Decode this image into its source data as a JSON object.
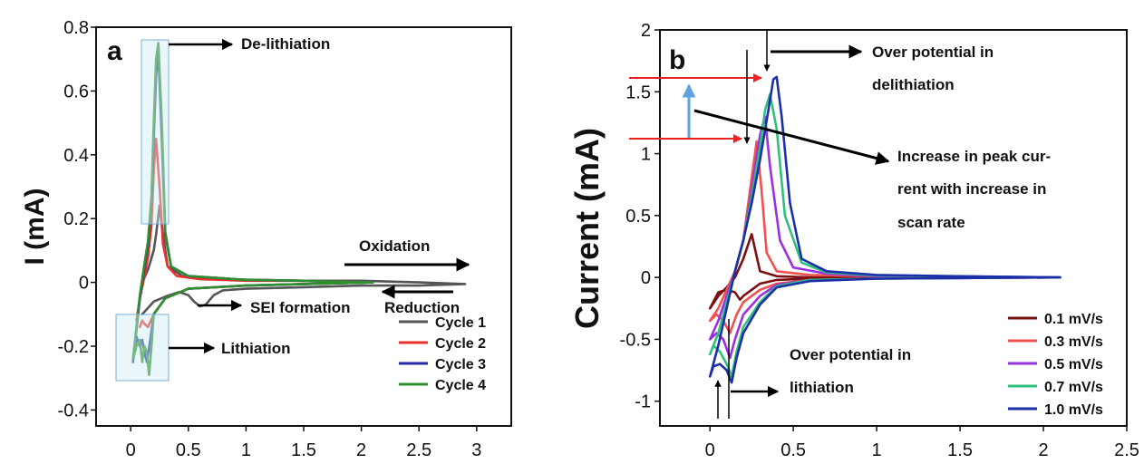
{
  "chart_data": [
    {
      "panel": "a",
      "type": "line",
      "ylabel": "I (mA)",
      "xlabel": "",
      "xlim": [
        -0.3,
        3.3
      ],
      "ylim": [
        -0.45,
        0.8
      ],
      "xticks": [
        0,
        0.5,
        1,
        1.5,
        2,
        2.5,
        3
      ],
      "xtick_labels": [
        "0",
        "0.5",
        "1",
        "1.5",
        "2",
        "2.5",
        "3"
      ],
      "yticks": [
        -0.4,
        -0.2,
        0,
        0.2,
        0.4,
        0.6,
        0.8
      ],
      "ytick_labels": [
        "-0.4",
        "-0.2",
        "0",
        "0.2",
        "0.4",
        "0.6",
        "0.8"
      ],
      "legend_placement": "bottom-right",
      "annotations": {
        "delithiation": "De-lithiation",
        "oxidation": "Oxidation",
        "reduction": "Reduction",
        "sei": "SEI formation",
        "lithiation": "Lithiation"
      },
      "series": [
        {
          "name": "Cycle 1",
          "color": "#555555",
          "x": [
            0.1,
            0.15,
            0.2,
            0.22,
            0.25,
            0.28,
            0.32,
            0.45,
            0.8,
            1.5,
            2.0,
            2.5,
            2.9,
            2.9,
            2.5,
            2.0,
            1.5,
            1.0,
            0.8,
            0.72,
            0.65,
            0.6,
            0.55,
            0.5,
            0.42,
            0.3,
            0.2,
            0.15,
            0.1
          ],
          "y": [
            0.0,
            0.04,
            0.1,
            0.15,
            0.24,
            0.15,
            0.05,
            0.02,
            0.01,
            0.005,
            0.005,
            0.0,
            -0.005,
            -0.005,
            -0.01,
            -0.01,
            -0.015,
            -0.02,
            -0.025,
            -0.04,
            -0.07,
            -0.075,
            -0.06,
            -0.04,
            -0.03,
            -0.045,
            -0.06,
            -0.08,
            -0.1
          ]
        },
        {
          "name": "Cycle 2",
          "color": "#e8312a",
          "x": [
            0.05,
            0.08,
            0.12,
            0.15,
            0.18,
            0.2,
            0.22,
            0.25,
            0.28,
            0.32,
            0.4,
            0.6,
            1.0,
            1.5,
            2.1,
            2.1,
            1.5,
            1.0,
            0.5,
            0.3,
            0.2,
            0.15,
            0.12,
            0.1,
            0.08
          ],
          "y": [
            -0.12,
            -0.05,
            0.02,
            0.08,
            0.18,
            0.35,
            0.45,
            0.3,
            0.12,
            0.05,
            0.02,
            0.01,
            0.005,
            0.005,
            0.0,
            0.0,
            -0.005,
            -0.01,
            -0.02,
            -0.05,
            -0.1,
            -0.14,
            -0.13,
            -0.12,
            -0.14
          ]
        },
        {
          "name": "Cycle 3",
          "color": "#2a2aa8",
          "x": [
            0.02,
            0.05,
            0.08,
            0.12,
            0.15,
            0.18,
            0.2,
            0.22,
            0.24,
            0.27,
            0.3,
            0.35,
            0.5,
            1.0,
            1.5,
            2.1,
            2.1,
            1.5,
            1.0,
            0.5,
            0.3,
            0.2,
            0.17,
            0.14,
            0.12,
            0.1,
            0.08,
            0.05,
            0.02
          ],
          "y": [
            -0.25,
            -0.15,
            -0.05,
            0.05,
            0.12,
            0.25,
            0.45,
            0.65,
            0.72,
            0.45,
            0.15,
            0.05,
            0.02,
            0.008,
            0.005,
            0.0,
            0.0,
            -0.005,
            -0.01,
            -0.02,
            -0.05,
            -0.1,
            -0.18,
            -0.25,
            -0.22,
            -0.18,
            -0.2,
            -0.17,
            -0.25
          ]
        },
        {
          "name": "Cycle 4",
          "color": "#2f8f2f",
          "x": [
            0.02,
            0.05,
            0.08,
            0.12,
            0.15,
            0.18,
            0.2,
            0.22,
            0.24,
            0.27,
            0.3,
            0.35,
            0.5,
            1.0,
            1.5,
            2.1,
            2.1,
            1.5,
            1.0,
            0.5,
            0.3,
            0.2,
            0.18,
            0.16,
            0.14,
            0.12,
            0.1,
            0.08,
            0.05,
            0.02
          ],
          "y": [
            -0.24,
            -0.14,
            -0.04,
            0.06,
            0.13,
            0.27,
            0.5,
            0.7,
            0.75,
            0.5,
            0.16,
            0.05,
            0.02,
            0.008,
            0.005,
            0.0,
            0.0,
            -0.005,
            -0.01,
            -0.02,
            -0.05,
            -0.1,
            -0.2,
            -0.29,
            -0.22,
            -0.2,
            -0.25,
            -0.18,
            -0.2,
            -0.24
          ]
        }
      ]
    },
    {
      "panel": "b",
      "type": "line",
      "ylabel": "Current (mA)",
      "xlabel": "",
      "xlim": [
        -0.3,
        2.5
      ],
      "ylim": [
        -1.2,
        2.0
      ],
      "xticks": [
        0,
        0.5,
        1,
        1.5,
        2,
        2.5
      ],
      "xtick_labels": [
        "0",
        "0.5",
        "1",
        "1.5",
        "2",
        "2.5"
      ],
      "yticks": [
        -1,
        -0.5,
        0,
        0.5,
        1,
        1.5,
        2
      ],
      "ytick_labels": [
        "-1",
        "-0.5",
        "0",
        "0.5",
        "1",
        "1.5",
        "2"
      ],
      "legend_placement": "bottom-right",
      "annotations": {
        "over_delith_1": "Over potential in",
        "over_delith_2": "delithiation",
        "increase_1": "Increase in peak cur-",
        "increase_2": "rent with increase in",
        "increase_3": "scan rate",
        "over_lith_1": "Over potential in",
        "over_lith_2": "lithiation"
      },
      "series": [
        {
          "name": "0.1 mV/s",
          "color": "#7a1010",
          "x": [
            0.0,
            0.05,
            0.1,
            0.15,
            0.2,
            0.25,
            0.3,
            0.4,
            0.6,
            1.0,
            1.5,
            2.1,
            2.1,
            1.5,
            1.0,
            0.6,
            0.4,
            0.3,
            0.25,
            0.2,
            0.18,
            0.15,
            0.1,
            0.05,
            0.0
          ],
          "y": [
            -0.25,
            -0.15,
            -0.08,
            0.0,
            0.15,
            0.35,
            0.05,
            0.01,
            0.0,
            0.0,
            0.0,
            0.0,
            0.0,
            0.0,
            0.0,
            -0.01,
            -0.02,
            -0.05,
            -0.1,
            -0.15,
            -0.18,
            -0.12,
            -0.1,
            -0.12,
            -0.25
          ]
        },
        {
          "name": "0.3 mV/s",
          "color": "#f05050",
          "x": [
            0.0,
            0.05,
            0.1,
            0.15,
            0.2,
            0.24,
            0.28,
            0.31,
            0.34,
            0.4,
            0.6,
            1.0,
            1.5,
            2.1,
            2.1,
            1.5,
            1.0,
            0.6,
            0.4,
            0.3,
            0.2,
            0.16,
            0.12,
            0.08,
            0.04,
            0.0
          ],
          "y": [
            -0.35,
            -0.25,
            -0.1,
            0.05,
            0.3,
            0.7,
            1.1,
            0.7,
            0.2,
            0.05,
            0.02,
            0.01,
            0.0,
            0.0,
            0.0,
            -0.005,
            -0.01,
            -0.02,
            -0.05,
            -0.1,
            -0.2,
            -0.3,
            -0.45,
            -0.35,
            -0.3,
            -0.35
          ]
        },
        {
          "name": "0.5 mV/s",
          "color": "#9a30e0",
          "x": [
            0.0,
            0.05,
            0.1,
            0.15,
            0.2,
            0.25,
            0.3,
            0.33,
            0.36,
            0.42,
            0.5,
            0.7,
            1.0,
            1.5,
            2.1,
            2.1,
            1.5,
            1.0,
            0.6,
            0.4,
            0.3,
            0.2,
            0.15,
            0.12,
            0.08,
            0.04,
            0.0
          ],
          "y": [
            -0.5,
            -0.35,
            -0.15,
            0.05,
            0.3,
            0.7,
            1.15,
            1.3,
            0.9,
            0.3,
            0.08,
            0.03,
            0.01,
            0.005,
            0.0,
            0.0,
            -0.005,
            -0.01,
            -0.02,
            -0.06,
            -0.15,
            -0.3,
            -0.5,
            -0.65,
            -0.5,
            -0.45,
            -0.5
          ]
        },
        {
          "name": "0.7 mV/s",
          "color": "#2fbf7f",
          "x": [
            0.0,
            0.05,
            0.1,
            0.15,
            0.2,
            0.25,
            0.3,
            0.33,
            0.36,
            0.4,
            0.45,
            0.55,
            0.7,
            1.0,
            1.5,
            2.1,
            2.1,
            1.5,
            1.0,
            0.6,
            0.4,
            0.3,
            0.2,
            0.16,
            0.13,
            0.1,
            0.06,
            0.02,
            0.0
          ],
          "y": [
            -0.62,
            -0.45,
            -0.2,
            0.05,
            0.3,
            0.65,
            1.05,
            1.35,
            1.48,
            1.2,
            0.5,
            0.12,
            0.04,
            0.015,
            0.008,
            0.0,
            0.0,
            -0.005,
            -0.01,
            -0.02,
            -0.07,
            -0.2,
            -0.4,
            -0.6,
            -0.8,
            -0.7,
            -0.6,
            -0.55,
            -0.62
          ]
        },
        {
          "name": "1.0 mV/s",
          "color": "#1c2fa8",
          "x": [
            0.0,
            0.05,
            0.1,
            0.15,
            0.2,
            0.25,
            0.3,
            0.35,
            0.38,
            0.4,
            0.43,
            0.48,
            0.55,
            0.7,
            1.0,
            1.5,
            2.1,
            2.1,
            1.5,
            1.0,
            0.6,
            0.4,
            0.3,
            0.2,
            0.16,
            0.13,
            0.1,
            0.06,
            0.02,
            0.0
          ],
          "y": [
            -0.8,
            -0.55,
            -0.25,
            0.05,
            0.3,
            0.6,
            0.95,
            1.35,
            1.6,
            1.62,
            1.3,
            0.6,
            0.15,
            0.05,
            0.02,
            0.01,
            0.0,
            0.0,
            -0.005,
            -0.01,
            -0.03,
            -0.08,
            -0.22,
            -0.45,
            -0.65,
            -0.85,
            -0.75,
            -0.7,
            -0.72,
            -0.8
          ]
        }
      ]
    }
  ]
}
